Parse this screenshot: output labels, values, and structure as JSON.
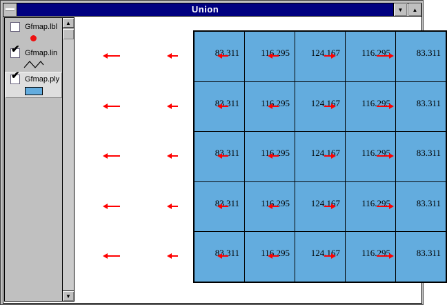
{
  "window": {
    "title": "Union"
  },
  "icons": {
    "minimize": "▼",
    "maximize": "▲",
    "scroll_up": "▲",
    "scroll_down": "▼",
    "check": "✔"
  },
  "toc": {
    "items": [
      {
        "label": "Gfmap.lbl",
        "checked": false,
        "active": false,
        "symbol": "point",
        "symbol_color": "#ee1111"
      },
      {
        "label": "Gfmap.lin",
        "checked": true,
        "active": false,
        "symbol": "line",
        "symbol_color": "#000000"
      },
      {
        "label": "Gfmap.ply",
        "checked": true,
        "active": true,
        "symbol": "polygon",
        "symbol_color": "#63acde"
      }
    ]
  },
  "map": {
    "rows": 5,
    "cols": 5,
    "fill_color": "#63acde",
    "arrow_color": "#ff0000",
    "column_values": [
      "83.311",
      "116.295",
      "124.167",
      "116.295",
      "83.311"
    ],
    "arrows_per_row": [
      {
        "pos": "outer-left",
        "dir": "left"
      },
      {
        "pos": "border-1",
        "dir": "left"
      },
      {
        "pos": "border-2",
        "dir": "left"
      },
      {
        "pos": "border-3",
        "dir": "left"
      },
      {
        "pos": "border-4",
        "dir": "right"
      },
      {
        "pos": "outer-right",
        "dir": "right"
      }
    ]
  }
}
